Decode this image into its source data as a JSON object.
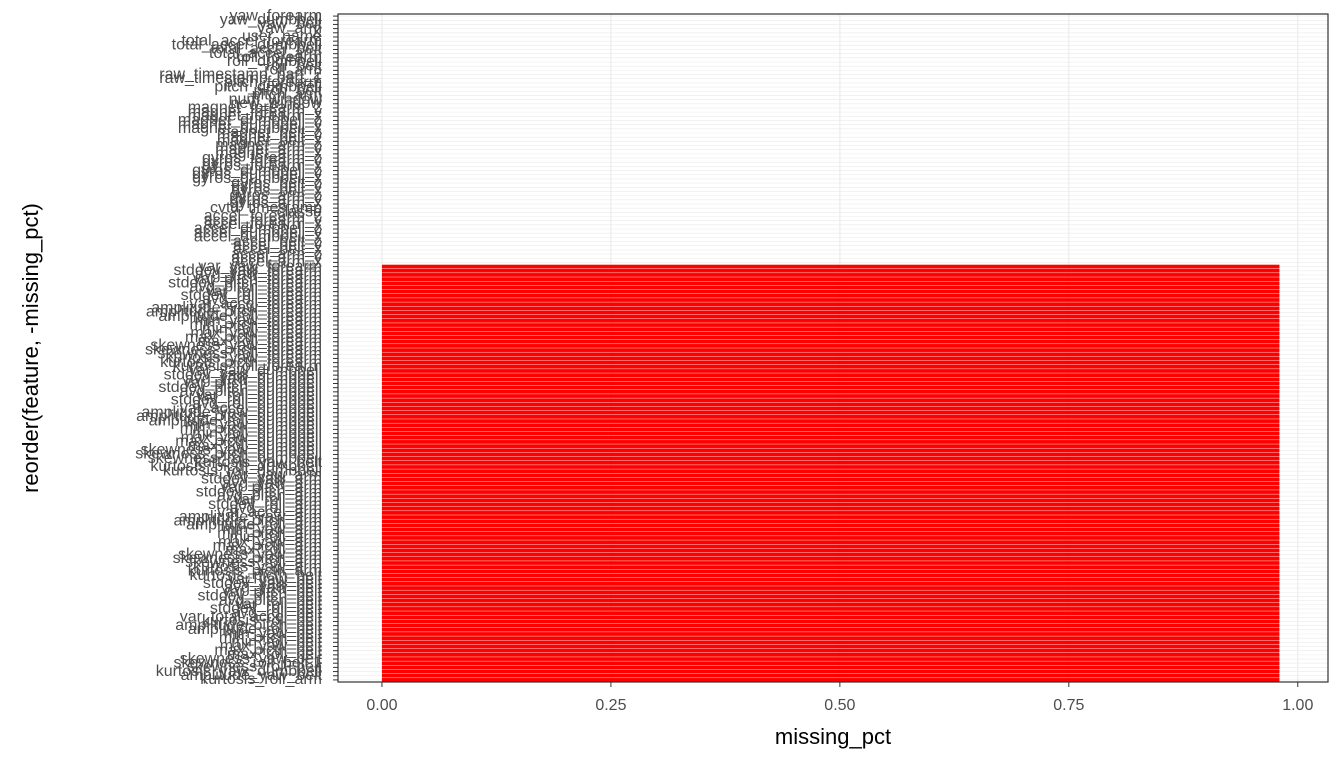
{
  "chart_data": {
    "type": "barh",
    "x_label": "missing_pct",
    "y_label": "reorder(feature, -missing_pct)",
    "color": "#ff0000",
    "xlim": [
      -0.048,
      1.033
    ],
    "xticks": [
      {
        "value": 0,
        "label": "0.00"
      },
      {
        "value": 0.25,
        "label": "0.25"
      },
      {
        "value": 0.5,
        "label": "0.50"
      },
      {
        "value": 0.75,
        "label": "0.75"
      },
      {
        "value": 1,
        "label": "1.00"
      }
    ],
    "grid": true,
    "categories": [
      "kurtosis_roll_arm",
      "amplitude_yaw_belt",
      "kurtosis_yaw_dumbbell",
      "skewness_roll_belt",
      "skewness_roll_belt.1",
      "skewness_yaw_belt",
      "max_roll_belt",
      "max_picth_belt",
      "max_yaw_belt",
      "min_roll_belt",
      "min_pitch_belt",
      "min_yaw_belt",
      "amplitude_roll_belt",
      "amplitude_pitch_belt",
      "kurtosis_roll_belt",
      "var_total_accel_belt",
      "avg_roll_belt",
      "stddev_roll_belt",
      "var_roll_belt",
      "avg_pitch_belt",
      "stddev_pitch_belt",
      "var_pitch_belt",
      "avg_yaw_belt",
      "stddev_yaw_belt",
      "var_yaw_belt",
      "kurtosis_picth_belt",
      "kurtosis_picth_arm",
      "kurtosis_yaw_arm",
      "skewness_roll_arm",
      "skewness_pitch_arm",
      "skewness_yaw_arm",
      "max_roll_arm",
      "max_picth_arm",
      "max_yaw_arm",
      "min_roll_arm",
      "min_pitch_arm",
      "min_yaw_arm",
      "amplitude_roll_arm",
      "amplitude_pitch_arm",
      "amplitude_yaw_arm",
      "var_accel_arm",
      "avg_roll_arm",
      "stddev_roll_arm",
      "var_roll_arm",
      "avg_pitch_arm",
      "stddev_pitch_arm",
      "var_pitch_arm",
      "avg_yaw_arm",
      "stddev_yaw_arm",
      "var_yaw_arm",
      "kurtosis_roll_dumbbell",
      "kurtosis_picth_dumbbell",
      "kurtosis_yaw_belt",
      "skewness_roll_dumbbell",
      "skewness_pitch_dumbbell",
      "skewness_yaw_dumbbell",
      "max_roll_dumbbell",
      "max_picth_dumbbell",
      "max_yaw_dumbbell",
      "min_roll_dumbbell",
      "min_pitch_dumbbell",
      "min_yaw_dumbbell",
      "amplitude_roll_dumbbell",
      "amplitude_pitch_dumbbell",
      "amplitude_yaw_dumbbell",
      "var_accel_dumbbell",
      "avg_roll_dumbbell",
      "stddev_roll_dumbbell",
      "var_roll_dumbbell",
      "avg_pitch_dumbbell",
      "stddev_pitch_dumbbell",
      "var_pitch_dumbbell",
      "avg_yaw_dumbbell",
      "stddev_yaw_dumbbell",
      "var_yaw_dumbbell",
      "kurtosis_roll_forearm",
      "kurtosis_picth_forearm",
      "kurtosis_yaw_forearm",
      "skewness_roll_forearm",
      "skewness_pitch_forearm",
      "skewness_yaw_forearm",
      "max_roll_forearm",
      "max_picth_forearm",
      "max_yaw_forearm",
      "min_roll_forearm",
      "min_pitch_forearm",
      "min_yaw_forearm",
      "amplitude_roll_forearm",
      "amplitude_pitch_forearm",
      "amplitude_yaw_forearm",
      "var_accel_forearm",
      "avg_roll_forearm",
      "stddev_roll_forearm",
      "var_roll_forearm",
      "avg_pitch_forearm",
      "stddev_pitch_forearm",
      "var_pitch_forearm",
      "avg_yaw_forearm",
      "stddev_yaw_forearm",
      "var_yaw_forearm",
      "accel_arm_x",
      "accel_arm_y",
      "accel_arm_z",
      "accel_belt_x",
      "accel_belt_y",
      "accel_belt_z",
      "accel_dumbbell_x",
      "accel_dumbbell_y",
      "accel_dumbbell_z",
      "accel_forearm_x",
      "accel_forearm_y",
      "accel_forearm_z",
      "classe",
      "cvtd_timestamp",
      "gyros_arm_x",
      "gyros_arm_y",
      "gyros_arm_z",
      "gyros_belt_x",
      "gyros_belt_y",
      "gyros_belt_z",
      "gyros_dumbbell_x",
      "gyros_dumbbell_y",
      "gyros_dumbbell_z",
      "gyros_forearm_x",
      "gyros_forearm_y",
      "gyros_forearm_z",
      "magnet_arm_x",
      "magnet_arm_y",
      "magnet_arm_z",
      "magnet_belt_x",
      "magnet_belt_y",
      "magnet_belt_z",
      "magnet_dumbbell_x",
      "magnet_dumbbell_y",
      "magnet_dumbbell_z",
      "magnet_forearm_x",
      "magnet_forearm_y",
      "magnet_forearm_z",
      "new_window",
      "num_window",
      "pitch_arm",
      "pitch_belt",
      "pitch_dumbbell",
      "pitch_forearm",
      "raw_timestamp_part_1",
      "raw_timestamp_part_2",
      "roll_arm",
      "roll_belt",
      "roll_dumbbell",
      "roll_forearm",
      "total_accel_arm",
      "total_accel_belt",
      "total_accel_dumbbell",
      "total_accel_forearm",
      "user_name",
      "X",
      "yaw_arm",
      "yaw_belt",
      "yaw_dumbbell",
      "yaw_forearm"
    ],
    "values": [
      0.98,
      0.98,
      0.98,
      0.98,
      0.98,
      0.98,
      0.98,
      0.98,
      0.98,
      0.98,
      0.98,
      0.98,
      0.98,
      0.98,
      0.98,
      0.98,
      0.98,
      0.98,
      0.98,
      0.98,
      0.98,
      0.98,
      0.98,
      0.98,
      0.98,
      0.98,
      0.98,
      0.98,
      0.98,
      0.98,
      0.98,
      0.98,
      0.98,
      0.98,
      0.98,
      0.98,
      0.98,
      0.98,
      0.98,
      0.98,
      0.98,
      0.98,
      0.98,
      0.98,
      0.98,
      0.98,
      0.98,
      0.98,
      0.98,
      0.98,
      0.98,
      0.98,
      0.98,
      0.98,
      0.98,
      0.98,
      0.98,
      0.98,
      0.98,
      0.98,
      0.98,
      0.98,
      0.98,
      0.98,
      0.98,
      0.98,
      0.98,
      0.98,
      0.98,
      0.98,
      0.98,
      0.98,
      0.98,
      0.98,
      0.98,
      0.98,
      0.98,
      0.98,
      0.98,
      0.98,
      0.98,
      0.98,
      0.98,
      0.98,
      0.98,
      0.98,
      0.98,
      0.98,
      0.98,
      0.98,
      0.98,
      0.98,
      0.98,
      0.98,
      0.98,
      0.98,
      0.98,
      0.98,
      0.98,
      0.98,
      0,
      0,
      0,
      0,
      0,
      0,
      0,
      0,
      0,
      0,
      0,
      0,
      0,
      0,
      0,
      0,
      0,
      0,
      0,
      0,
      0,
      0,
      0,
      0,
      0,
      0,
      0,
      0,
      0,
      0,
      0,
      0,
      0,
      0,
      0,
      0,
      0,
      0,
      0,
      0,
      0,
      0,
      0,
      0,
      0,
      0,
      0,
      0,
      0,
      0,
      0,
      0,
      0,
      0,
      0,
      0,
      0,
      0,
      0,
      0
    ]
  }
}
